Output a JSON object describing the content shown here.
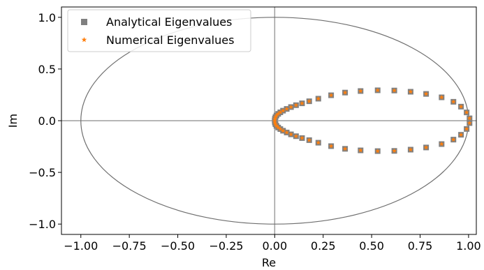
{
  "chart_data": {
    "type": "scatter",
    "xlabel": "Re",
    "ylabel": "Im",
    "xlim": [
      -1.1,
      1.04
    ],
    "ylim": [
      -1.1,
      1.1
    ],
    "xticks": [
      -1.0,
      -0.75,
      -0.5,
      -0.25,
      0.0,
      0.25,
      0.5,
      0.75,
      1.0
    ],
    "xtick_labels": [
      "−1.00",
      "−0.75",
      "−0.50",
      "−0.25",
      "0.00",
      "0.25",
      "0.50",
      "0.75",
      "1.00"
    ],
    "yticks": [
      -1.0,
      -0.5,
      0.0,
      0.5,
      1.0
    ],
    "ytick_labels": [
      "−1.0",
      "−0.5",
      "0.0",
      "0.5",
      "1.0"
    ],
    "grid": false,
    "legend_position": "top-left",
    "reference_lines": {
      "x": 0,
      "y": 0
    },
    "unit_circle": {
      "center": [
        0,
        0
      ],
      "radius": 1
    },
    "series": [
      {
        "name": "Analytical Eigenvalues",
        "marker": "square",
        "color": "#808080",
        "points": [
          [
            0.0,
            0.0
          ],
          [
            0.001,
            0.018
          ],
          [
            0.004,
            0.034
          ],
          [
            0.009,
            0.05
          ],
          [
            0.018,
            0.066
          ],
          [
            0.029,
            0.081
          ],
          [
            0.043,
            0.097
          ],
          [
            0.062,
            0.114
          ],
          [
            0.084,
            0.132
          ],
          [
            0.11,
            0.15
          ],
          [
            0.141,
            0.168
          ],
          [
            0.178,
            0.188
          ],
          [
            0.225,
            0.213
          ],
          [
            0.291,
            0.246
          ],
          [
            0.363,
            0.272
          ],
          [
            0.443,
            0.287
          ],
          [
            0.531,
            0.294
          ],
          [
            0.617,
            0.292
          ],
          [
            0.701,
            0.28
          ],
          [
            0.781,
            0.259
          ],
          [
            0.861,
            0.226
          ],
          [
            0.922,
            0.183
          ],
          [
            0.961,
            0.136
          ],
          [
            0.99,
            0.08
          ],
          [
            1.005,
            0.023
          ],
          [
            0.001,
            -0.018
          ],
          [
            0.004,
            -0.034
          ],
          [
            0.009,
            -0.05
          ],
          [
            0.018,
            -0.066
          ],
          [
            0.029,
            -0.081
          ],
          [
            0.043,
            -0.097
          ],
          [
            0.062,
            -0.114
          ],
          [
            0.084,
            -0.132
          ],
          [
            0.11,
            -0.15
          ],
          [
            0.141,
            -0.168
          ],
          [
            0.178,
            -0.188
          ],
          [
            0.225,
            -0.213
          ],
          [
            0.291,
            -0.246
          ],
          [
            0.363,
            -0.272
          ],
          [
            0.443,
            -0.287
          ],
          [
            0.531,
            -0.294
          ],
          [
            0.617,
            -0.292
          ],
          [
            0.701,
            -0.28
          ],
          [
            0.781,
            -0.259
          ],
          [
            0.861,
            -0.226
          ],
          [
            0.922,
            -0.183
          ],
          [
            0.961,
            -0.136
          ],
          [
            0.99,
            -0.08
          ],
          [
            1.005,
            -0.023
          ]
        ]
      },
      {
        "name": "Numerical Eigenvalues",
        "marker": "star",
        "color": "#ff7f0e",
        "points": [
          [
            0.0,
            0.0
          ],
          [
            0.001,
            0.018
          ],
          [
            0.004,
            0.034
          ],
          [
            0.009,
            0.05
          ],
          [
            0.018,
            0.066
          ],
          [
            0.029,
            0.081
          ],
          [
            0.043,
            0.097
          ],
          [
            0.062,
            0.114
          ],
          [
            0.084,
            0.132
          ],
          [
            0.11,
            0.15
          ],
          [
            0.141,
            0.168
          ],
          [
            0.178,
            0.188
          ],
          [
            0.225,
            0.213
          ],
          [
            0.291,
            0.246
          ],
          [
            0.363,
            0.272
          ],
          [
            0.443,
            0.287
          ],
          [
            0.531,
            0.294
          ],
          [
            0.617,
            0.292
          ],
          [
            0.701,
            0.28
          ],
          [
            0.781,
            0.259
          ],
          [
            0.861,
            0.226
          ],
          [
            0.922,
            0.183
          ],
          [
            0.961,
            0.136
          ],
          [
            0.99,
            0.08
          ],
          [
            1.005,
            0.023
          ],
          [
            0.001,
            -0.018
          ],
          [
            0.004,
            -0.034
          ],
          [
            0.009,
            -0.05
          ],
          [
            0.018,
            -0.066
          ],
          [
            0.029,
            -0.081
          ],
          [
            0.043,
            -0.097
          ],
          [
            0.062,
            -0.114
          ],
          [
            0.084,
            -0.132
          ],
          [
            0.11,
            -0.15
          ],
          [
            0.141,
            -0.168
          ],
          [
            0.178,
            -0.188
          ],
          [
            0.225,
            -0.213
          ],
          [
            0.291,
            -0.246
          ],
          [
            0.363,
            -0.272
          ],
          [
            0.443,
            -0.287
          ],
          [
            0.531,
            -0.294
          ],
          [
            0.617,
            -0.292
          ],
          [
            0.701,
            -0.28
          ],
          [
            0.781,
            -0.259
          ],
          [
            0.861,
            -0.226
          ],
          [
            0.922,
            -0.183
          ],
          [
            0.961,
            -0.136
          ],
          [
            0.99,
            -0.08
          ],
          [
            1.005,
            -0.023
          ]
        ]
      }
    ]
  }
}
